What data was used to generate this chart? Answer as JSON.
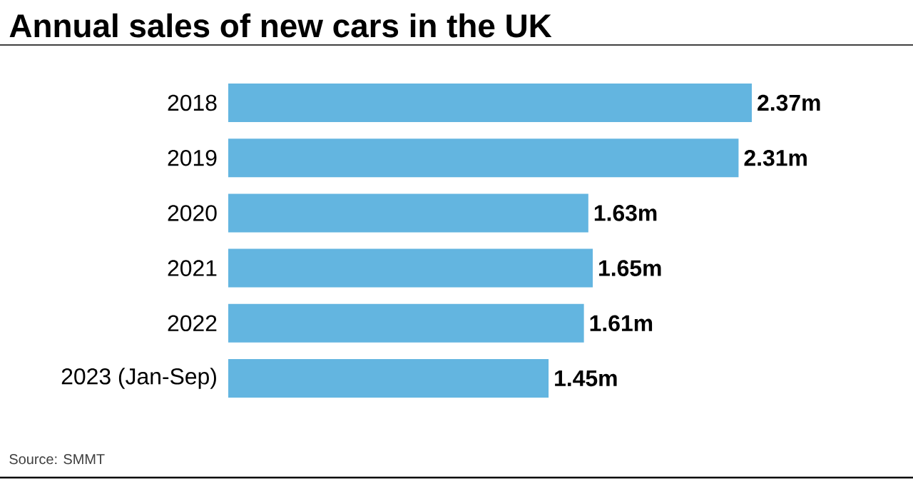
{
  "chart_data": {
    "type": "bar",
    "orientation": "horizontal",
    "title": "Annual sales of new cars in the UK",
    "categories": [
      "2018",
      "2019",
      "2020",
      "2021",
      "2022",
      "2023 (Jan-Sep)"
    ],
    "values": [
      2.37,
      2.31,
      1.63,
      1.65,
      1.61,
      1.45
    ],
    "value_labels": [
      "2.37m",
      "2.31m",
      "1.63m",
      "1.65m",
      "1.61m",
      "1.45m"
    ],
    "color": "#63b5e0",
    "annotations": [
      "Source: SMMT"
    ]
  }
}
